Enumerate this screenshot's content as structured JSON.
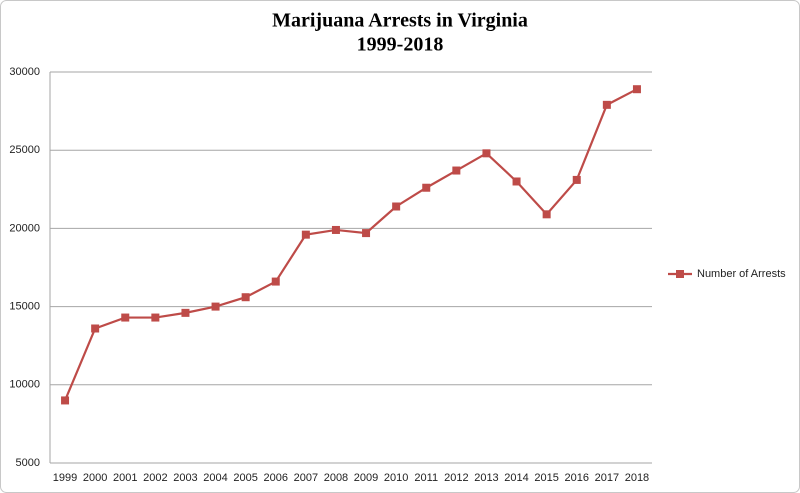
{
  "chart_data": {
    "type": "line",
    "title": [
      "Marijuana Arrests in Virginia",
      "1999-2018"
    ],
    "categories": [
      "1999",
      "2000",
      "2001",
      "2002",
      "2003",
      "2004",
      "2005",
      "2006",
      "2007",
      "2008",
      "2009",
      "2010",
      "2011",
      "2012",
      "2013",
      "2014",
      "2015",
      "2016",
      "2017",
      "2018"
    ],
    "series": [
      {
        "name": "Number of Arrests",
        "color": "#be4b48",
        "values": [
          9000,
          13600,
          14300,
          14300,
          14600,
          15000,
          15600,
          16600,
          19600,
          19900,
          19700,
          21400,
          22600,
          23700,
          24800,
          23000,
          20900,
          23100,
          27900,
          28900
        ]
      }
    ],
    "ylim": [
      5000,
      30000
    ],
    "yticks": [
      5000,
      10000,
      15000,
      20000,
      25000,
      30000
    ],
    "grid": true,
    "legend": "right"
  }
}
